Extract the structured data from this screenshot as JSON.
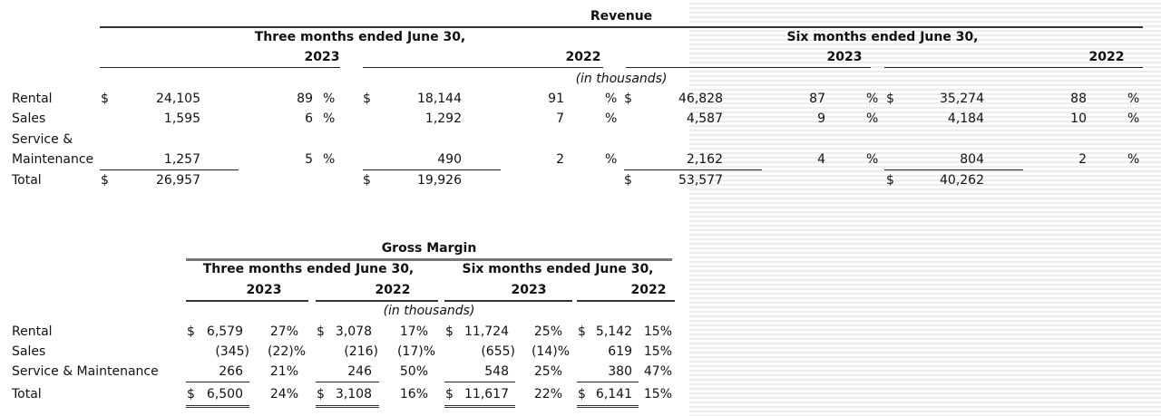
{
  "revenue": {
    "title": "Revenue",
    "period_three": "Three months ended June 30,",
    "period_six": "Six months ended June 30,",
    "years": [
      "2023",
      "2022",
      "2023",
      "2022"
    ],
    "unit_note": "(in thousands)",
    "rows": [
      {
        "label": "Rental",
        "cells": [
          "$",
          "24,105",
          "89",
          "%",
          "$",
          "18,144",
          "91",
          "%",
          "$",
          "46,828",
          "87",
          "%",
          "$",
          "35,274",
          "88",
          "%"
        ]
      },
      {
        "label": "Sales",
        "cells": [
          "",
          "1,595",
          "6",
          "%",
          "",
          "1,292",
          "7",
          "%",
          "",
          "4,587",
          "9",
          "%",
          "",
          "4,184",
          "10",
          "%"
        ]
      },
      {
        "label": "Service &",
        "label2": "Maintenance",
        "cells": [
          "",
          "1,257",
          "5",
          "%",
          "",
          "490",
          "2",
          "%",
          "",
          "2,162",
          "4",
          "%",
          "",
          "804",
          "2",
          "%"
        ]
      },
      {
        "label": "Total",
        "cells": [
          "$",
          "26,957",
          "",
          "",
          "$",
          "19,926",
          "",
          "",
          "$",
          "53,577",
          "",
          "",
          "$",
          "40,262",
          "",
          ""
        ]
      }
    ]
  },
  "gross_margin": {
    "title": "Gross Margin",
    "period_three": "Three months ended June 30,",
    "period_six": "Six months ended June 30,",
    "years": [
      "2023",
      "2022",
      "2023",
      "2022"
    ],
    "unit_note": "(in thousands)",
    "rows": [
      {
        "label": "Rental",
        "cells": [
          "$ 6,579",
          "27%",
          "$ 3,078",
          "17%",
          "$ 11,724",
          "25%",
          "$ 5,142",
          "15%"
        ]
      },
      {
        "label": "Sales",
        "cells": [
          "(345)",
          "(22)%",
          "(216)",
          "(17)%",
          "(655)",
          "(14)%",
          "619",
          "15%"
        ]
      },
      {
        "label": "Service & Maintenance",
        "cells": [
          "266",
          "21%",
          "246",
          "50%",
          "548",
          "25%",
          "380",
          "47%"
        ]
      },
      {
        "label": "Total",
        "cells": [
          "$ 6,500",
          "24%",
          "$ 3,108",
          "16%",
          "$ 11,617",
          "22%",
          "$ 6,141",
          "15%"
        ]
      }
    ]
  }
}
